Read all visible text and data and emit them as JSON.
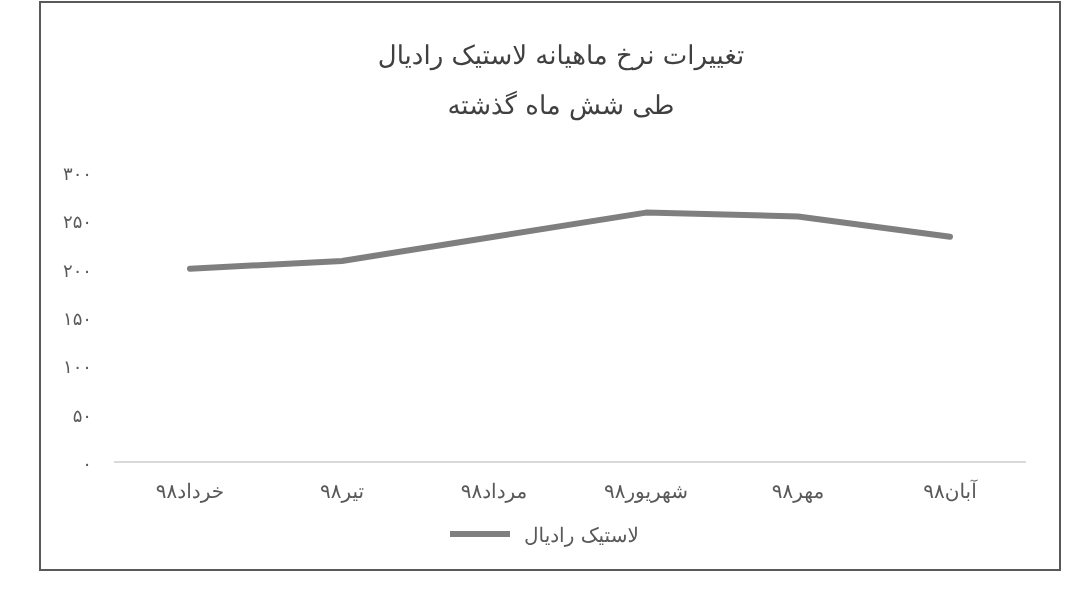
{
  "chart_data": {
    "type": "line",
    "title": "تغییرات نرخ ماهیانه لاستیک رادیال",
    "subtitle": "طی شش ماه گذشته",
    "categories": [
      "خرداد۹۸",
      "تیر۹۸",
      "مرداد۹۸",
      "شهریور۹۸",
      "مهر۹۸",
      "آبان۹۸"
    ],
    "series": [
      {
        "name": "لاستیک رادیال",
        "color": "#7f7f7f",
        "values": [
          200,
          208,
          233,
          258,
          254,
          233
        ]
      }
    ],
    "ylim": [
      0,
      300
    ],
    "yticks": [
      {
        "value": 0,
        "label": "۰"
      },
      {
        "value": 50,
        "label": "۵۰"
      },
      {
        "value": 100,
        "label": "۱۰۰"
      },
      {
        "value": 150,
        "label": "۱۵۰"
      },
      {
        "value": 200,
        "label": "۲۰۰"
      },
      {
        "value": 250,
        "label": "۲۵۰"
      },
      {
        "value": 300,
        "label": "۳۰۰"
      }
    ],
    "grid": false,
    "legend": "bottom",
    "marker": "none",
    "line_style": "solid"
  }
}
